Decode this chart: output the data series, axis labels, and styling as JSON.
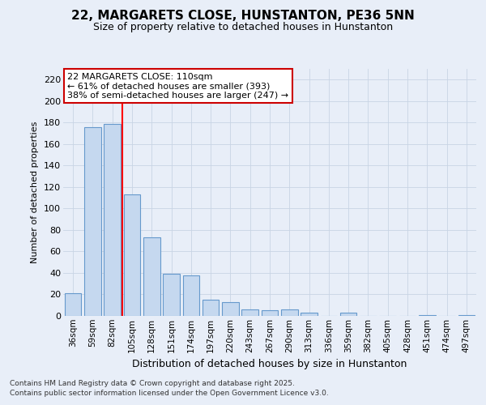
{
  "title_line1": "22, MARGARETS CLOSE, HUNSTANTON, PE36 5NN",
  "title_line2": "Size of property relative to detached houses in Hunstanton",
  "xlabel": "Distribution of detached houses by size in Hunstanton",
  "ylabel": "Number of detached properties",
  "categories": [
    "36sqm",
    "59sqm",
    "82sqm",
    "105sqm",
    "128sqm",
    "151sqm",
    "174sqm",
    "197sqm",
    "220sqm",
    "243sqm",
    "267sqm",
    "290sqm",
    "313sqm",
    "336sqm",
    "359sqm",
    "382sqm",
    "405sqm",
    "428sqm",
    "451sqm",
    "474sqm",
    "497sqm"
  ],
  "values": [
    21,
    176,
    179,
    113,
    73,
    39,
    38,
    15,
    13,
    6,
    5,
    6,
    3,
    0,
    3,
    0,
    0,
    0,
    1,
    0,
    1
  ],
  "bar_color": "#c5d8ef",
  "bar_edge_color": "#6699cc",
  "grid_color": "#c8d4e4",
  "bg_color": "#e8eef8",
  "red_line_x": 2.5,
  "annotation_line1": "22 MARGARETS CLOSE: 110sqm",
  "annotation_line2": "← 61% of detached houses are smaller (393)",
  "annotation_line3": "38% of semi-detached houses are larger (247) →",
  "annotation_box_facecolor": "#ffffff",
  "annotation_box_edgecolor": "#cc0000",
  "footer_line1": "Contains HM Land Registry data © Crown copyright and database right 2025.",
  "footer_line2": "Contains public sector information licensed under the Open Government Licence v3.0.",
  "ylim": [
    0,
    230
  ],
  "yticks": [
    0,
    20,
    40,
    60,
    80,
    100,
    120,
    140,
    160,
    180,
    200,
    220
  ],
  "title1_fontsize": 11,
  "title2_fontsize": 9,
  "ylabel_fontsize": 8,
  "xlabel_fontsize": 9,
  "tick_fontsize": 8,
  "xtick_fontsize": 7.5,
  "annot_fontsize": 8,
  "footer_fontsize": 6.5
}
